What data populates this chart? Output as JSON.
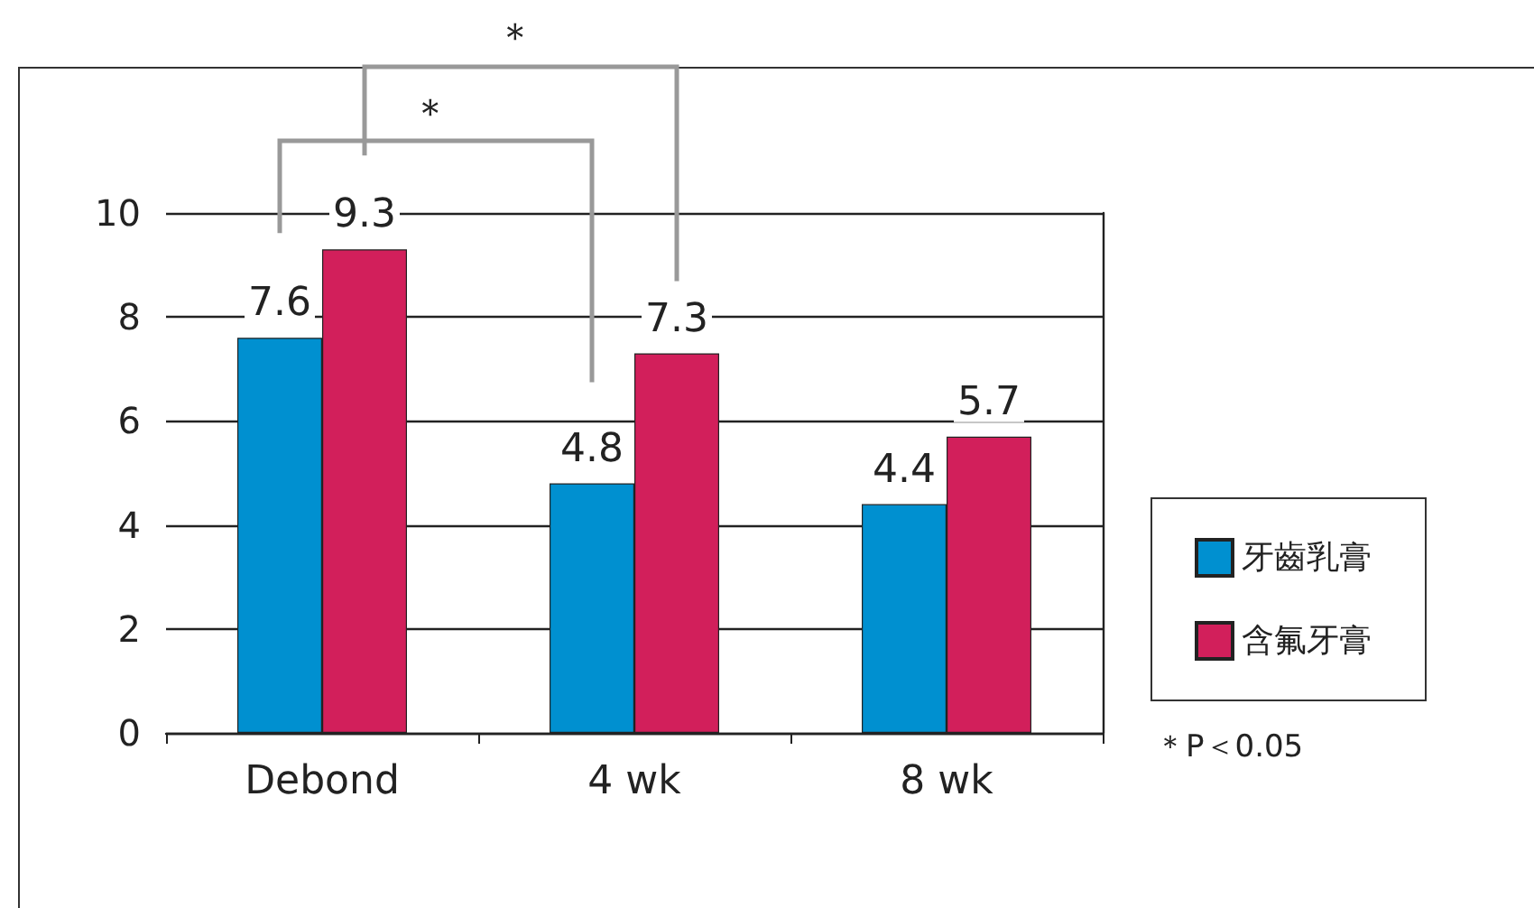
{
  "chart_data": {
    "type": "bar",
    "categories": [
      "Debond",
      "4 wk",
      "8 wk"
    ],
    "series": [
      {
        "name": "牙齒乳膏",
        "color": "#0090d0",
        "values": [
          7.6,
          4.8,
          4.4
        ]
      },
      {
        "name": "含氟牙膏",
        "color": "#d21f5b",
        "values": [
          9.3,
          7.3,
          5.7
        ]
      }
    ],
    "ylim": [
      0,
      10
    ],
    "yticks": [
      0,
      2,
      4,
      6,
      8,
      10
    ],
    "grid": "y",
    "legend": "right",
    "data_labels": true,
    "annotations": [
      "＊",
      "＊",
      "＊P＜0.05"
    ]
  }
}
